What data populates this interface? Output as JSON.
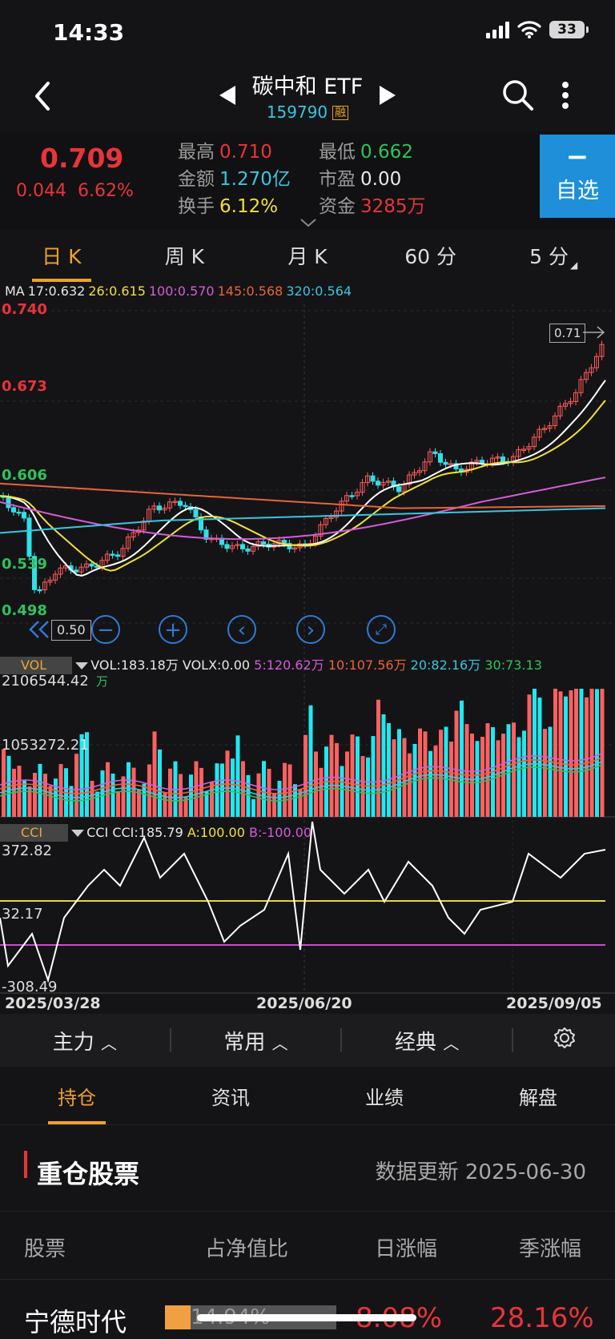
{
  "status": {
    "time": "14:33",
    "battery": "33"
  },
  "header": {
    "back_icon": "chevron-left-icon",
    "title": "碳中和 ETF",
    "code": "159790",
    "margin_badge": "融",
    "search_icon": "search-icon",
    "more_icon": "more-vertical-icon"
  },
  "quote": {
    "price": "0.709",
    "change": "0.044",
    "change_pct": "6.62%",
    "high_label": "最高",
    "high": "0.710",
    "low_label": "最低",
    "low": "0.662",
    "amount_label": "金额",
    "amount": "1.270亿",
    "pe_label": "市盈",
    "pe": "0.00",
    "turnover_label": "换手",
    "turnover": "6.12%",
    "fund_label": "资金",
    "fund": "3285万",
    "watch_minus": "−",
    "watch_label": "自选",
    "colors": {
      "up": "#e8343a",
      "down": "#2ec25e",
      "yellow": "#f2e03a",
      "cyan": "#39c6e0"
    }
  },
  "period_tabs": [
    {
      "label": "日 K",
      "active": true
    },
    {
      "label": "周 K"
    },
    {
      "label": "月 K"
    },
    {
      "label": "60 分"
    },
    {
      "label": "5 分"
    }
  ],
  "ma_line": {
    "prefix": "MA",
    "ma17": "17:0.632",
    "ma26": "26:0.615",
    "ma100": "100:0.570",
    "ma145": "145:0.568",
    "ma320": "320:0.564"
  },
  "price_axis": {
    "t1": "0.740",
    "t2": "0.673",
    "t3": "0.606",
    "t4": "0.539",
    "t5": "0.498",
    "last_marker": "0.71",
    "cursor_value": "0.50"
  },
  "volume": {
    "tag": "VOL",
    "vol": "VOL:183.18万",
    "volx": "VOLX:0.00",
    "ma5": "5:120.62万",
    "ma10": "10:107.56万",
    "ma20": "20:82.16万",
    "ma30": "30:73.13",
    "ma30_unit": "万",
    "axis_max": "2106544.42",
    "axis_mid": "1053272.21"
  },
  "cci": {
    "tag": "CCI",
    "label": "CCI",
    "value": "CCI:185.79",
    "a": "A:100.00",
    "b": "B:-100.00",
    "axis_max": "372.82",
    "axis_mid": "32.17",
    "axis_min": "-308.49"
  },
  "dates": {
    "d1": "2025/03/28",
    "d2": "2025/06/20",
    "d3": "2025/09/05"
  },
  "tools": {
    "main": "主力",
    "common": "常用",
    "classic": "经典"
  },
  "subtabs": [
    {
      "label": "持仓",
      "active": true
    },
    {
      "label": "资讯"
    },
    {
      "label": "业绩"
    },
    {
      "label": "解盘"
    }
  ],
  "holdings": {
    "title": "重仓股票",
    "updated": "数据更新 2025-06-30",
    "col_stock": "股票",
    "col_weight": "占净值比",
    "col_day": "日涨幅",
    "col_quarter": "季涨幅",
    "rows": [
      {
        "name": "宁德时代",
        "weight": "14.94%",
        "day": "8.08%",
        "quarter": "28.16%"
      }
    ]
  }
}
